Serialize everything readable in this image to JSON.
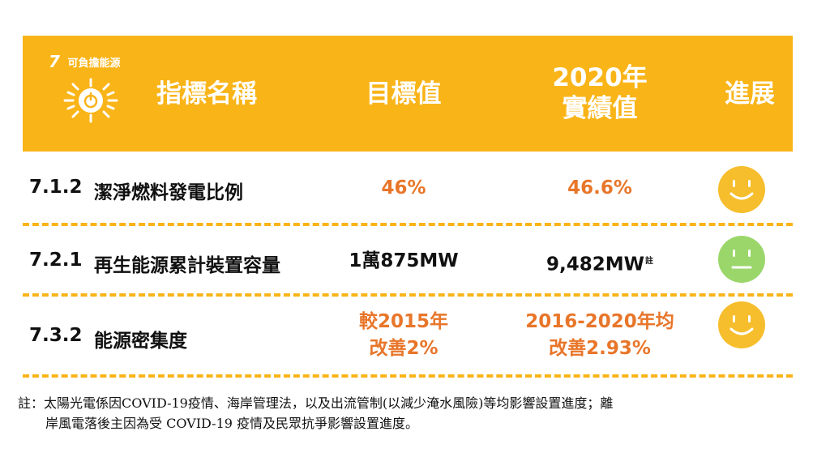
{
  "header": {
    "sdg_number": "7",
    "sdg_title": "可負擔能源",
    "col_name": "指標名稱",
    "col_target": "目標值",
    "col_actual_line1": "2020年",
    "col_actual_line2": "實績值",
    "col_progress": "進展"
  },
  "rows": [
    {
      "code": "7.1.2",
      "name": "潔淨燃料發電比例",
      "target_line1": "46%",
      "actual_line1": "46.6%",
      "progress": "smiling-face"
    },
    {
      "code": "7.2.1",
      "name": "再生能源累計裝置容量",
      "target_line1": "1萬875MW",
      "actual_line1": "9,482MW",
      "actual_note_mark": "註",
      "progress": "neutral-face"
    },
    {
      "code": "7.3.2",
      "name": "能源密集度",
      "target_line1": "較2015年",
      "target_line2": "改善2%",
      "actual_line1": "2016-2020年均",
      "actual_line2": "改善2.93%",
      "progress": "smiling-face"
    }
  ],
  "note": {
    "line1": "註：太陽光電係因COVID-19疫情、海岸管理法，以及出流管制(以減少淹水風險)等均影響設置進度；離",
    "line2": "岸風電落後主因為受 COVID-19 疫情及民眾抗爭影響設置進度。"
  },
  "colors": {
    "header_bg": "#F9B418",
    "highlight_text": "#E8762A",
    "smile_face": "#F6BE2C",
    "neutral_face": "#9BD66B"
  }
}
